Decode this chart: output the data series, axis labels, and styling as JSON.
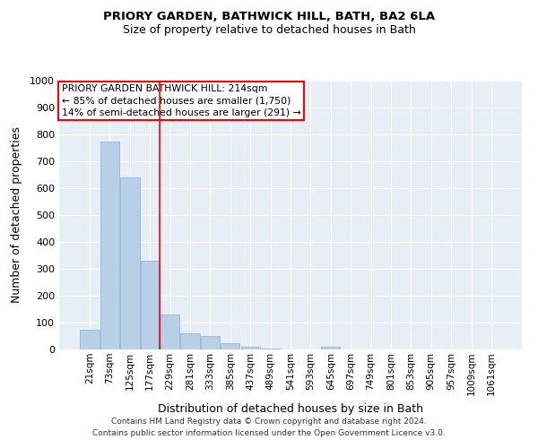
{
  "title": "PRIORY GARDEN, BATHWICK HILL, BATH, BA2 6LA",
  "subtitle": "Size of property relative to detached houses in Bath",
  "xlabel": "Distribution of detached houses by size in Bath",
  "ylabel": "Number of detached properties",
  "annotation_line1": "PRIORY GARDEN BATHWICK HILL: 214sqm",
  "annotation_line2": "← 85% of detached houses are smaller (1,750)",
  "annotation_line3": "14% of semi-detached houses are larger (291) →",
  "footer_line1": "Contains HM Land Registry data © Crown copyright and database right 2024.",
  "footer_line2": "Contains public sector information licensed under the Open Government Licence v3.0.",
  "bar_color": "#b8cfe8",
  "bar_edge_color": "#8aafd4",
  "background_color": "#e8eef5",
  "grid_color": "#ffffff",
  "red_line_x": 3.5,
  "categories": [
    "21sqm",
    "73sqm",
    "125sqm",
    "177sqm",
    "229sqm",
    "281sqm",
    "333sqm",
    "385sqm",
    "437sqm",
    "489sqm",
    "541sqm",
    "593sqm",
    "645sqm",
    "697sqm",
    "749sqm",
    "801sqm",
    "853sqm",
    "905sqm",
    "957sqm",
    "1009sqm",
    "1061sqm"
  ],
  "values": [
    75,
    775,
    640,
    330,
    130,
    60,
    50,
    25,
    10,
    5,
    0,
    0,
    10,
    0,
    0,
    0,
    0,
    0,
    0,
    0,
    0
  ],
  "ylim": [
    0,
    1000
  ],
  "yticks": [
    0,
    100,
    200,
    300,
    400,
    500,
    600,
    700,
    800,
    900,
    1000
  ]
}
